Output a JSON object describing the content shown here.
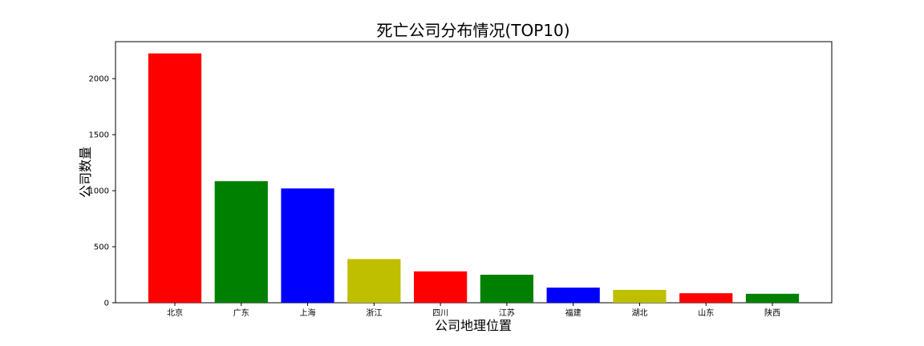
{
  "chart_data": {
    "type": "bar",
    "title": "死亡公司分布情况(TOP10)",
    "xlabel": "公司地理位置",
    "ylabel": "公司数量",
    "categories": [
      "北京",
      "广东",
      "上海",
      "浙江",
      "四川",
      "江苏",
      "福建",
      "湖北",
      "山东",
      "陕西"
    ],
    "values": [
      2225,
      1085,
      1020,
      390,
      280,
      250,
      135,
      115,
      85,
      80
    ],
    "colors": [
      "#ff0000",
      "#008000",
      "#0000ff",
      "#bfbf00",
      "#ff0000",
      "#008000",
      "#0000ff",
      "#bfbf00",
      "#ff0000",
      "#008000"
    ],
    "ylim": [
      0,
      2330
    ],
    "yticks": [
      0,
      500,
      1000,
      1500,
      2000
    ],
    "grid": false,
    "legend": false
  }
}
